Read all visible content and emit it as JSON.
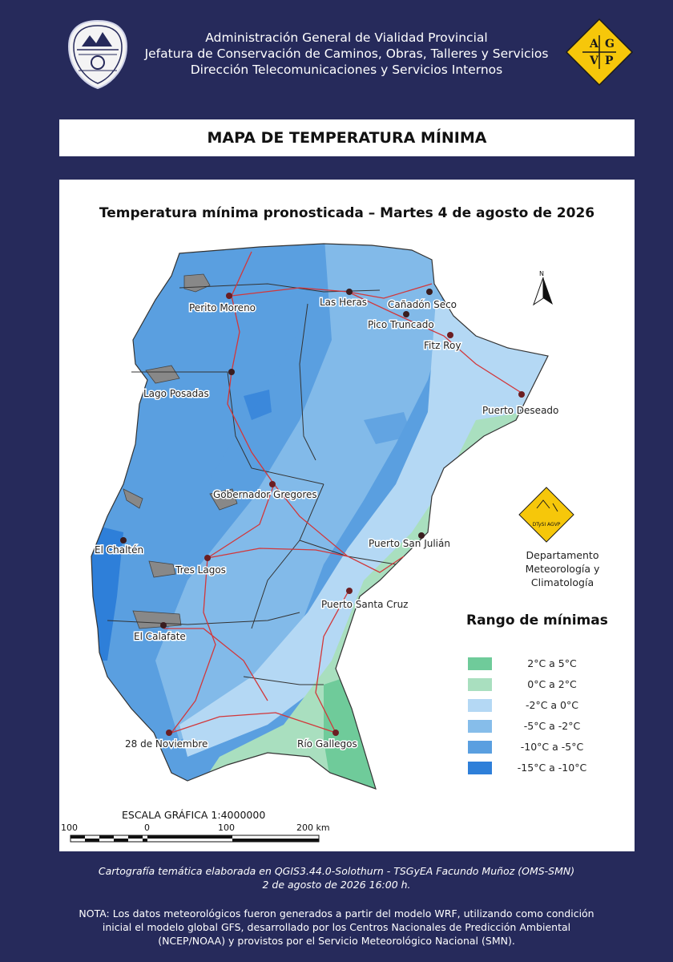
{
  "header": {
    "line1": "Administración General de Vialidad Provincial",
    "line2": "Jefatura de Conservación de Caminos, Obras, Talleres y Servicios",
    "line3": "Dirección Telecomunicaciones y Servicios Internos",
    "logo_letters": [
      "A",
      "G",
      "V",
      "P"
    ]
  },
  "title": "MAPA DE TEMPERATURA MÍNIMA",
  "map": {
    "subtitle": "Temperatura mínima pronosticada – Martes 4 de agosto de 2026",
    "north_label": "N",
    "cities": [
      "Perito Moreno",
      "Las Heras",
      "Cañadón Seco",
      "Pico Truncado",
      "Fitz Roy",
      "Lago Posadas",
      "Puerto Deseado",
      "Gobernador Gregores",
      "Puerto San Julián",
      "El Chaltén",
      "Tres Lagos",
      "Puerto Santa Cruz",
      "El Calafate",
      "28 de Noviembre",
      "Río Gallegos"
    ],
    "department": {
      "logo_text": "DTySI AGVP",
      "line1": "Departamento",
      "line2": "Meteorología y Climatología"
    },
    "legend": {
      "title": "Rango de mínimas",
      "items": [
        {
          "label": "2°C a 5°C",
          "color": "#6fcb9a"
        },
        {
          "label": "0°C a 2°C",
          "color": "#a9dfbf"
        },
        {
          "label": "-2°C a 0°C",
          "color": "#b4d8f4"
        },
        {
          "label": "-5°C a -2°C",
          "color": "#86bdea"
        },
        {
          "label": "-10°C a -5°C",
          "color": "#5a9fe0"
        },
        {
          "label": "-15°C a -10°C",
          "color": "#2e7fd9"
        }
      ]
    },
    "scale": {
      "title": "ESCALA GRÁFICA 1:4000000",
      "ticks": [
        "100",
        "0",
        "100",
        "200 km"
      ]
    }
  },
  "footer": {
    "credit_line1": "Cartografía temática elaborada en QGIS3.44.0-Solothurn - TSGyEA Facundo Muñoz (OMS-SMN)",
    "credit_line2": "2 de agosto de 2026 16:00 h.",
    "note_line1": "NOTA: Los datos meteorológicos fueron generados a partir del modelo WRF, utilizando como condición",
    "note_line2": "inicial el modelo global GFS, desarrollado por los Centros Nacionales de Predicción Ambiental",
    "note_line3": "(NCEP/NOAA) y provistos por el Servicio Meteorológico Nacional (SMN)."
  }
}
